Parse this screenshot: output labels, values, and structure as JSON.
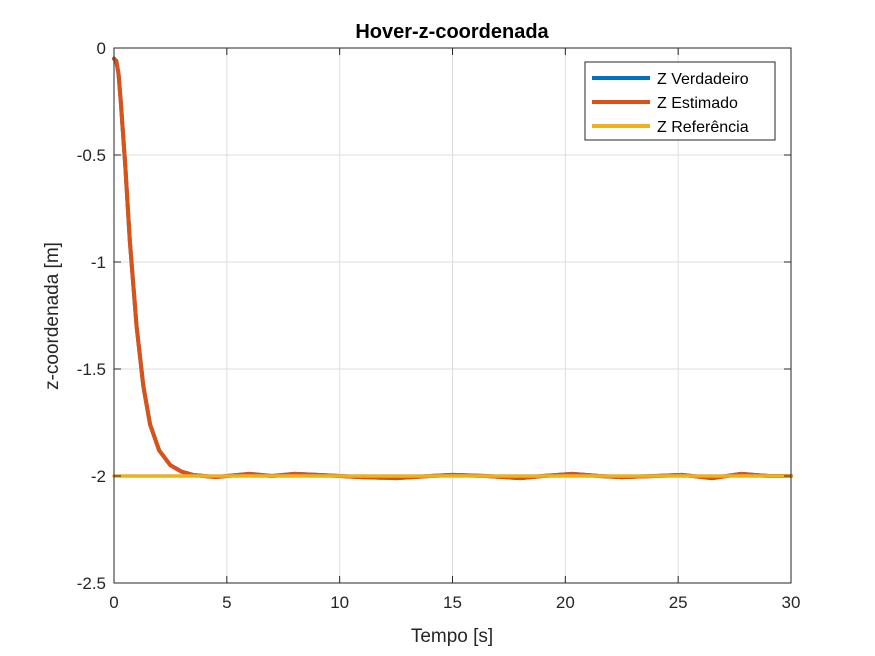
{
  "chart_data": {
    "type": "line",
    "title": "Hover-z-coordenada",
    "xlabel": "Tempo [s]",
    "ylabel": "z-coordenada [m]",
    "xlim": [
      0,
      30
    ],
    "ylim": [
      -2.5,
      0
    ],
    "xticks": [
      0,
      5,
      10,
      15,
      20,
      25,
      30
    ],
    "yticks": [
      0,
      -0.5,
      -1,
      -1.5,
      -2,
      -2.5
    ],
    "xtick_labels": [
      "0",
      "5",
      "10",
      "15",
      "20",
      "25",
      "30"
    ],
    "ytick_labels": [
      "0",
      "-0.5",
      "-1",
      "-1.5",
      "-2",
      "-2.5"
    ],
    "grid": true,
    "legend_position": "top-right",
    "series": [
      {
        "name": "Z Verdadeiro",
        "color": "#0072BD",
        "x": [
          0,
          0.1,
          0.2,
          0.3,
          0.5,
          0.7,
          1.0,
          1.3,
          1.6,
          2.0,
          2.5,
          3.0,
          3.5,
          4.0,
          4.5,
          5.0,
          6.0,
          7.0,
          8.0,
          9.0,
          10.0,
          11.0,
          12.5,
          14.0,
          15.0,
          16.5,
          18.0,
          19.0,
          20.3,
          21.5,
          22.5,
          24.0,
          25.2,
          26.5,
          27.8,
          29.0,
          30.0
        ],
        "y": [
          -0.05,
          -0.06,
          -0.12,
          -0.25,
          -0.55,
          -0.9,
          -1.3,
          -1.58,
          -1.76,
          -1.88,
          -1.95,
          -1.98,
          -1.995,
          -2.0,
          -2.005,
          -2.0,
          -1.99,
          -2.0,
          -1.99,
          -1.995,
          -2.0,
          -2.005,
          -2.01,
          -2.0,
          -1.995,
          -2.0,
          -2.01,
          -2.0,
          -1.99,
          -2.0,
          -2.005,
          -2.0,
          -1.995,
          -2.01,
          -1.99,
          -2.0,
          -2.0
        ]
      },
      {
        "name": "Z Estimado",
        "color": "#D95319",
        "x": [
          0,
          0.1,
          0.2,
          0.3,
          0.5,
          0.7,
          1.0,
          1.3,
          1.6,
          2.0,
          2.5,
          3.0,
          3.5,
          4.0,
          4.5,
          5.0,
          6.0,
          7.0,
          8.0,
          9.0,
          10.0,
          11.0,
          12.5,
          14.0,
          15.0,
          16.5,
          18.0,
          19.0,
          20.3,
          21.5,
          22.5,
          24.0,
          25.2,
          26.5,
          27.8,
          29.0,
          30.0
        ],
        "y": [
          -0.05,
          -0.06,
          -0.12,
          -0.25,
          -0.55,
          -0.9,
          -1.3,
          -1.58,
          -1.76,
          -1.88,
          -1.95,
          -1.98,
          -1.995,
          -2.0,
          -2.005,
          -2.0,
          -1.99,
          -2.0,
          -1.99,
          -1.995,
          -2.0,
          -2.005,
          -2.01,
          -2.0,
          -1.995,
          -2.0,
          -2.01,
          -2.0,
          -1.99,
          -2.0,
          -2.005,
          -2.0,
          -1.995,
          -2.01,
          -1.99,
          -2.0,
          -2.0
        ]
      },
      {
        "name": "Z Referência",
        "color": "#EDB120",
        "x": [
          0,
          30
        ],
        "y": [
          -2,
          -2
        ]
      }
    ]
  }
}
